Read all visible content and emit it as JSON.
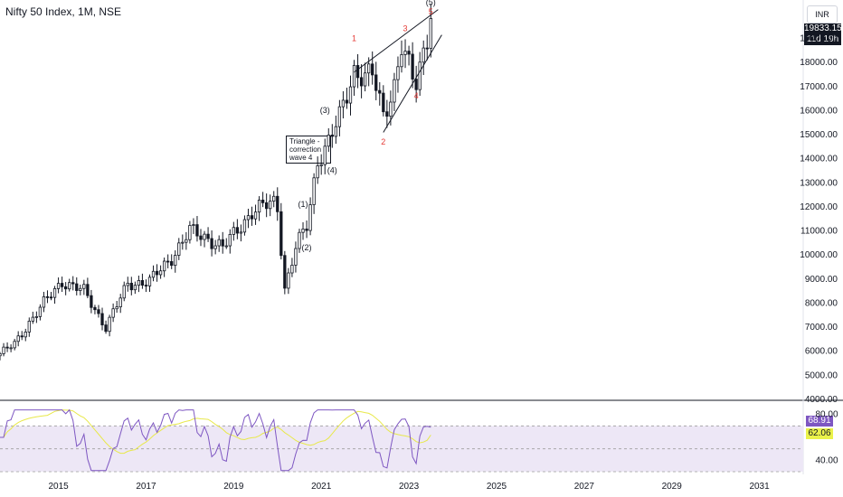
{
  "header": {
    "title": "Nifty 50 Index, 1M, NSE"
  },
  "price_axis": {
    "currency": "INR",
    "last_price": "19833.15",
    "countdown": "11d 19h"
  },
  "annotation": {
    "note_lines": [
      "Triangle -",
      "correction",
      "wave 4"
    ]
  },
  "waves": {
    "major": [
      "(1)",
      "(2)",
      "(3)",
      "(4)",
      "(5)"
    ],
    "minor": [
      "1",
      "2",
      "3",
      "4",
      "5"
    ]
  },
  "rsi": {
    "value": "68.91",
    "ma_value": "62.06",
    "value_color": "#7e57c2",
    "ma_color": "#eaf24a"
  },
  "colors": {
    "up": "#ffffff",
    "down": "#131722",
    "outline": "#131722",
    "rsi_line": "#7e57c2",
    "rsi_ma": "#e8e84a",
    "rsi_band": "#ede7f6",
    "wave_red": "#e53935"
  },
  "chart_data": {
    "type": "candlestick",
    "title": "Nifty 50 Index, 1M, NSE",
    "x_ticks": [
      "2015",
      "2017",
      "2019",
      "2021",
      "2023",
      "2025",
      "2027",
      "2029",
      "2031"
    ],
    "y_ticks": [
      4000,
      5000,
      6000,
      7000,
      8000,
      9000,
      10000,
      11000,
      12000,
      13000,
      14000,
      15000,
      16000,
      17000,
      18000,
      19000
    ],
    "ylim": [
      4000,
      20600
    ],
    "x_range": [
      "2013-09",
      "2031-12"
    ],
    "grid": false,
    "close_series": {
      "x": [
        "2013-09",
        "2014-01",
        "2014-05",
        "2014-09",
        "2015-02",
        "2015-08",
        "2016-02",
        "2016-08",
        "2017-02",
        "2017-08",
        "2018-01",
        "2018-06",
        "2018-10",
        "2019-06",
        "2019-12",
        "2020-01",
        "2020-03",
        "2020-06",
        "2020-09",
        "2020-12",
        "2021-03",
        "2021-06",
        "2021-10",
        "2022-01",
        "2022-03",
        "2022-06",
        "2022-09",
        "2022-11",
        "2023-02",
        "2023-03",
        "2023-05",
        "2023-07"
      ],
      "values": [
        5900,
        6300,
        7200,
        8000,
        8900,
        8500,
        7000,
        8800,
        8900,
        9900,
        11000,
        10700,
        10300,
        11800,
        12200,
        12000,
        8600,
        10300,
        11200,
        13950,
        14700,
        15700,
        17700,
        17400,
        17500,
        15800,
        17100,
        18700,
        17300,
        17100,
        18500,
        19833
      ]
    },
    "wave_labels": {
      "major": [
        {
          "label": "(1)",
          "x": "2020-08",
          "y": 12000
        },
        {
          "label": "(2)",
          "x": "2020-09",
          "y": 10200
        },
        {
          "label": "(3)",
          "x": "2021-02",
          "y": 15900
        },
        {
          "label": "(4)",
          "x": "2021-04",
          "y": 13400
        },
        {
          "label": "(5)",
          "x": "2023-07",
          "y": 20400
        }
      ],
      "minor": [
        {
          "label": "1",
          "x": "2021-10",
          "y": 18900
        },
        {
          "label": "2",
          "x": "2022-06",
          "y": 14600
        },
        {
          "label": "3",
          "x": "2022-12",
          "y": 19300
        },
        {
          "label": "4",
          "x": "2023-03",
          "y": 16500
        },
        {
          "label": "5",
          "x": "2023-07",
          "y": 20000
        }
      ]
    },
    "trendlines": [
      {
        "from": {
          "x": "2021-10",
          "y": 17600
        },
        "to": {
          "x": "2023-09",
          "y": 20200
        }
      },
      {
        "from": {
          "x": "2022-06",
          "y": 15100
        },
        "to": {
          "x": "2023-10",
          "y": 19150
        }
      }
    ],
    "rsi": {
      "ylim": [
        30,
        90
      ],
      "ticks": [
        40,
        80
      ],
      "band": [
        30,
        70
      ],
      "last_value": 68.91,
      "ma_last_value": 62.06
    }
  }
}
